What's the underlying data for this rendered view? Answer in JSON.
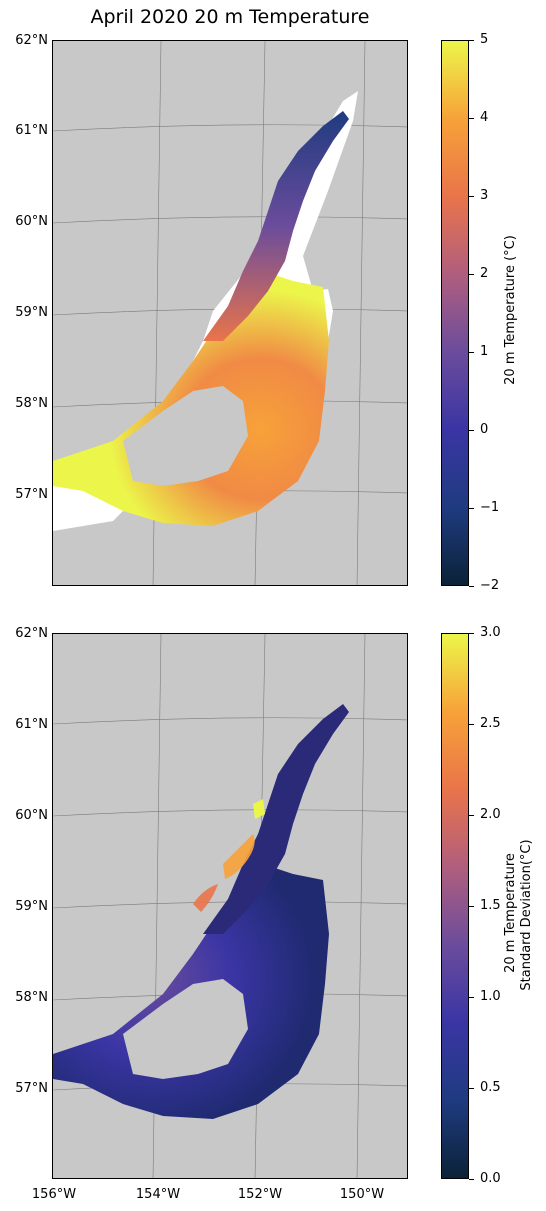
{
  "title": "April 2020 20 m Temperature",
  "lat_labels": [
    "62°N",
    "61°N",
    "60°N",
    "59°N",
    "58°N",
    "57°N"
  ],
  "lon_labels": [
    "156°W",
    "154°W",
    "152°W",
    "150°W"
  ],
  "top_colorbar": {
    "label": "20 m Temperature (°C)",
    "ticks": [
      "5",
      "4",
      "3",
      "2",
      "1",
      "0",
      "−1",
      "−2"
    ],
    "range": [
      -2,
      5
    ],
    "colormap": [
      "#ecf64a",
      "#f7a239",
      "#e9744a",
      "#b05e7e",
      "#6b4c9c",
      "#3a35a4",
      "#1f3b80",
      "#0b2238"
    ]
  },
  "bottom_colorbar": {
    "label_line1": "20 m Temperature",
    "label_line2": "Standard Deviation(°C)",
    "ticks": [
      "3.0",
      "2.5",
      "2.0",
      "1.5",
      "1.0",
      "0.5",
      "0.0"
    ],
    "range": [
      0,
      3
    ],
    "colormap": [
      "#ecf64a",
      "#f7a239",
      "#e9744a",
      "#b05e7e",
      "#6b4c9c",
      "#3a35a4",
      "#1f3b80",
      "#0b2238"
    ]
  },
  "colors": {
    "land": "#c8c8c8",
    "ocean_mask": "#ffffff"
  }
}
